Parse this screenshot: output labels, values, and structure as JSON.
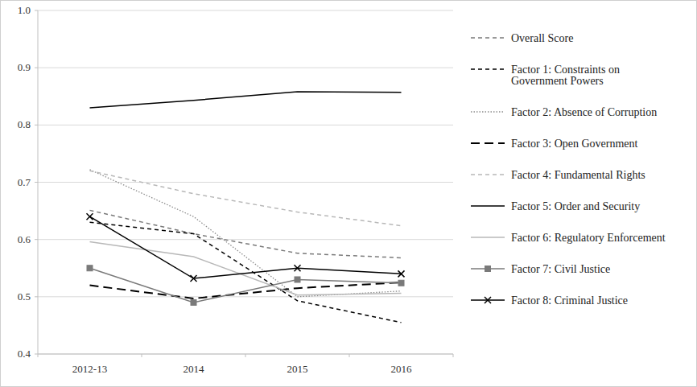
{
  "chart_data": {
    "type": "line",
    "categories": [
      "2012-13",
      "2014",
      "2015",
      "2016"
    ],
    "ylim": [
      0.4,
      1
    ],
    "yticks": [
      0.4,
      0.5,
      0.6,
      0.7,
      0.8,
      0.9,
      {
        "value": 1,
        "label": "1.0"
      }
    ],
    "grid": true,
    "legend": "right",
    "series": [
      {
        "name": "Overall Score",
        "color": "#7a7a7a",
        "line_style": "dashed",
        "values": [
          0.651,
          0.61,
          0.576,
          0.568
        ]
      },
      {
        "name": "Factor 1: Constraints on Government Powers",
        "color": "#000000",
        "line_style": "dashed",
        "values": [
          0.63,
          0.61,
          0.493,
          0.455
        ]
      },
      {
        "name": "Factor 2: Absence of Corruption",
        "color": "#8c8c8c",
        "line_style": "dotted",
        "values": [
          0.722,
          0.64,
          0.5,
          0.51
        ]
      },
      {
        "name": "Factor 3: Open Government",
        "color": "#000000",
        "line_style": "longdash",
        "values": [
          0.52,
          0.497,
          0.515,
          0.525
        ]
      },
      {
        "name": "Factor 4: Fundamental Rights",
        "color": "#b8b8b8",
        "line_style": "dashed",
        "values": [
          0.72,
          0.68,
          0.648,
          0.624
        ]
      },
      {
        "name": "Factor 5: Order and Security",
        "color": "#000000",
        "line_style": "solid",
        "values": [
          0.83,
          0.843,
          0.858,
          0.857
        ]
      },
      {
        "name": "Factor 6: Regulatory Enforcement",
        "color": "#b8b8b8",
        "line_style": "solid",
        "values": [
          0.596,
          0.57,
          0.503,
          0.506
        ]
      },
      {
        "name": "Factor 7: Civil Justice",
        "color": "#7a7a7a",
        "line_style": "solid",
        "marker": "square",
        "values": [
          0.55,
          0.49,
          0.53,
          0.524
        ]
      },
      {
        "name": "Factor 8: Criminal Justice",
        "color": "#000000",
        "line_style": "solid",
        "marker": "x",
        "values": [
          0.64,
          0.532,
          0.55,
          0.54
        ]
      }
    ]
  }
}
